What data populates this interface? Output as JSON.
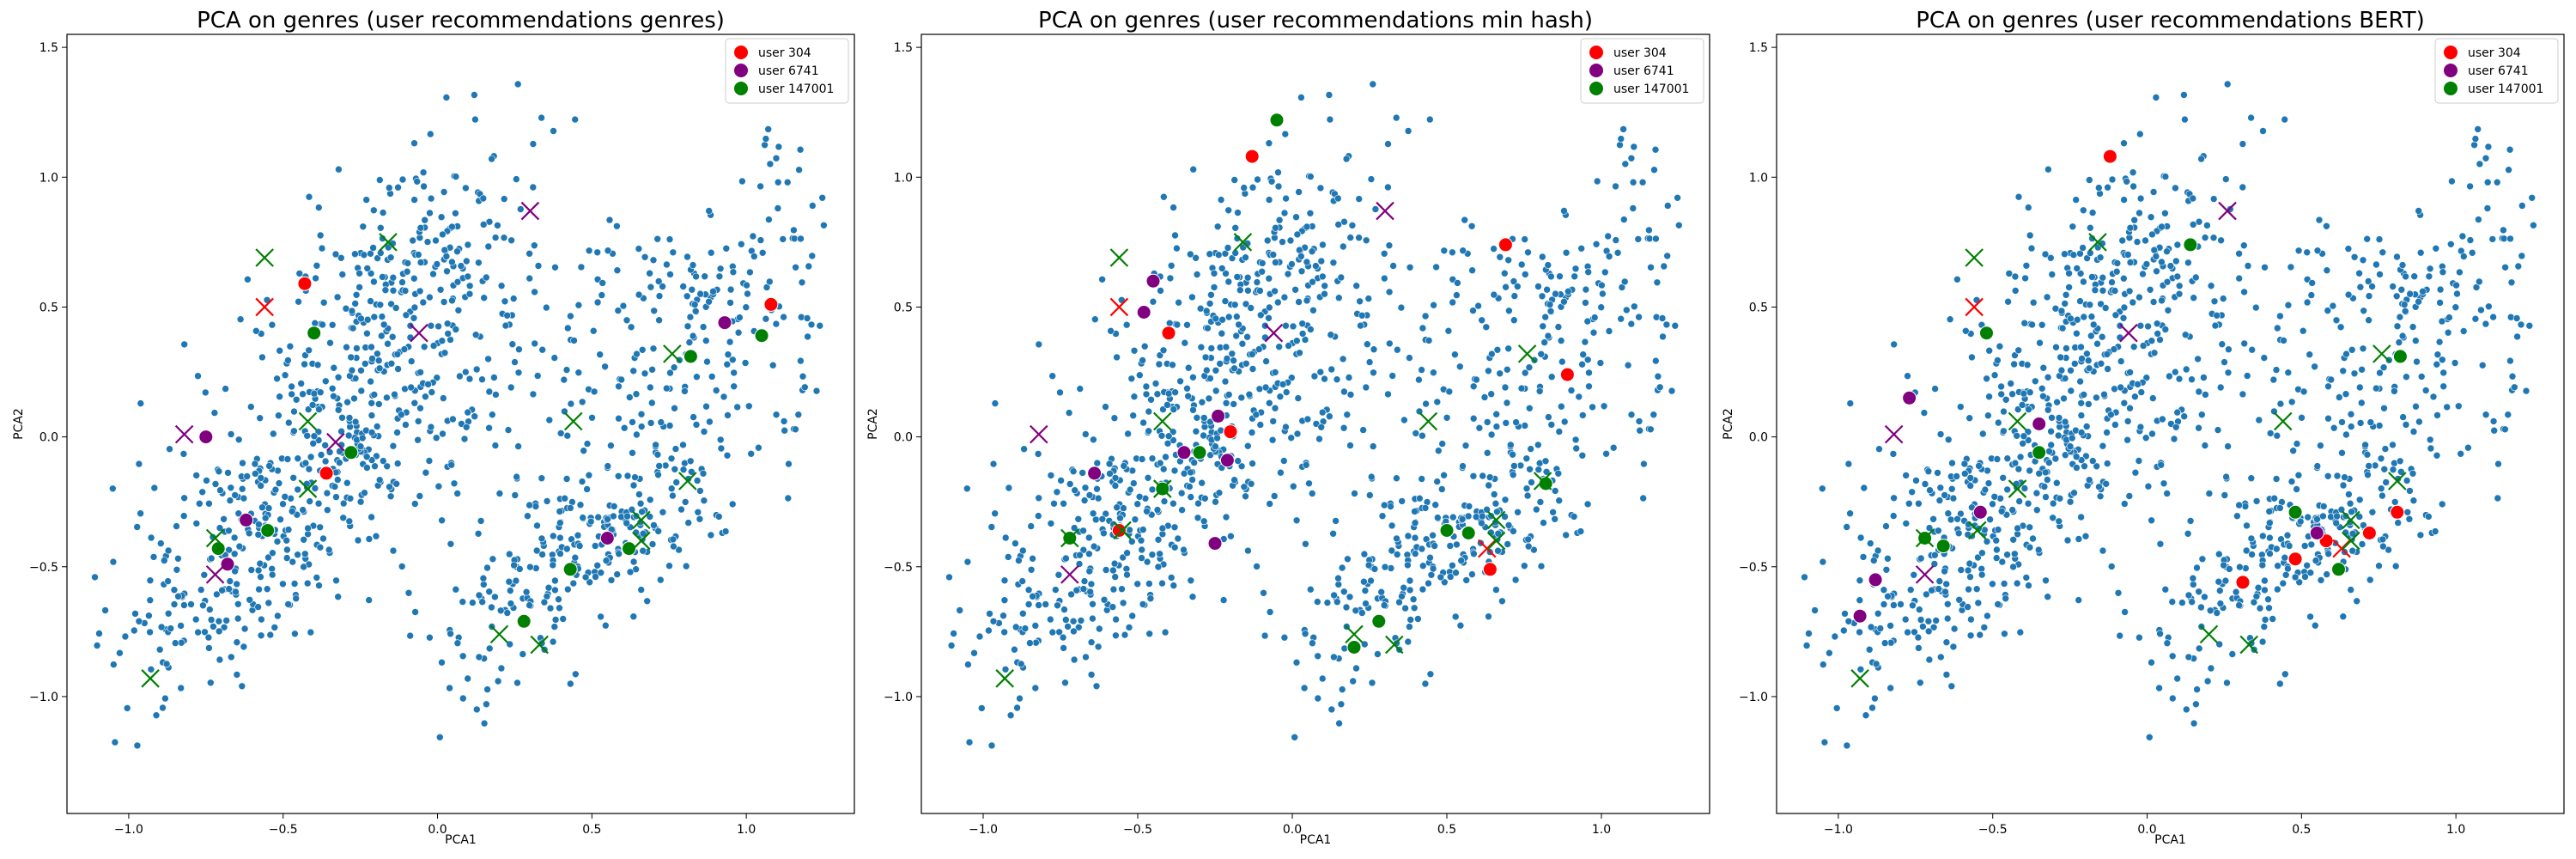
{
  "chart_data": [
    {
      "type": "scatter",
      "title": "PCA on genres (user recommendations genres)",
      "xlabel": "PCA1",
      "ylabel": "PCA2",
      "xlim": [
        -1.2,
        1.35
      ],
      "ylim": [
        -1.45,
        1.55
      ],
      "xticks": [
        -1.0,
        -0.5,
        0.0,
        0.5,
        1.0
      ],
      "xtick_labels": [
        "−1.0",
        "−0.5",
        "0.0",
        "0.5",
        "1.0"
      ],
      "yticks": [
        -1.0,
        -0.5,
        0.0,
        0.5,
        1.0,
        1.5
      ],
      "ytick_labels": [
        "−1.0",
        "−0.5",
        "0.0",
        "0.5",
        "1.0",
        "1.5"
      ],
      "grid": false,
      "legend": "top-right",
      "legend_entries": [
        {
          "label": "user 304",
          "color": "#ff0000"
        },
        {
          "label": "user 6741",
          "color": "#800080"
        },
        {
          "label": "user 147001",
          "color": "#008000"
        }
      ],
      "highlights": {
        "user 304": [
          [
            -0.36,
            -0.14
          ],
          [
            -0.43,
            0.59
          ],
          [
            1.08,
            0.51
          ]
        ],
        "user 6741": [
          [
            -0.75,
            0.0
          ],
          [
            -0.62,
            -0.32
          ],
          [
            -0.68,
            -0.49
          ],
          [
            0.55,
            -0.39
          ],
          [
            0.93,
            0.44
          ]
        ],
        "user 147001": [
          [
            -0.55,
            -0.36
          ],
          [
            -0.71,
            -0.43
          ],
          [
            -0.4,
            0.4
          ],
          [
            -0.28,
            -0.06
          ],
          [
            0.28,
            -0.71
          ],
          [
            0.43,
            -0.51
          ],
          [
            0.62,
            -0.43
          ],
          [
            0.82,
            0.31
          ],
          [
            1.05,
            0.39
          ]
        ]
      },
      "crosses": {
        "user 304": [
          [
            -0.56,
            0.5
          ]
        ],
        "user 6741": [
          [
            -0.82,
            0.01
          ],
          [
            -0.72,
            -0.53
          ],
          [
            -0.33,
            -0.02
          ],
          [
            -0.06,
            0.4
          ],
          [
            0.3,
            0.87
          ]
        ],
        "user 147001": [
          [
            -0.93,
            -0.93
          ],
          [
            -0.72,
            -0.39
          ],
          [
            -0.56,
            0.69
          ],
          [
            -0.42,
            0.06
          ],
          [
            -0.42,
            -0.2
          ],
          [
            -0.16,
            0.75
          ],
          [
            0.2,
            -0.76
          ],
          [
            0.33,
            -0.8
          ],
          [
            0.44,
            0.06
          ],
          [
            0.66,
            -0.32
          ],
          [
            0.66,
            -0.4
          ],
          [
            0.76,
            0.32
          ],
          [
            0.81,
            -0.17
          ]
        ]
      }
    },
    {
      "type": "scatter",
      "title": "PCA on genres (user recommendations min hash)",
      "xlabel": "PCA1",
      "ylabel": "PCA2",
      "xlim": [
        -1.2,
        1.35
      ],
      "ylim": [
        -1.45,
        1.55
      ],
      "xticks": [
        -1.0,
        -0.5,
        0.0,
        0.5,
        1.0
      ],
      "xtick_labels": [
        "−1.0",
        "−0.5",
        "0.0",
        "0.5",
        "1.0"
      ],
      "yticks": [
        -1.0,
        -0.5,
        0.0,
        0.5,
        1.0,
        1.5
      ],
      "ytick_labels": [
        "−1.0",
        "−0.5",
        "0.0",
        "0.5",
        "1.0",
        "1.5"
      ],
      "grid": false,
      "legend": "top-right",
      "legend_entries": [
        {
          "label": "user 304",
          "color": "#ff0000"
        },
        {
          "label": "user 6741",
          "color": "#800080"
        },
        {
          "label": "user 147001",
          "color": "#008000"
        }
      ],
      "highlights": {
        "user 304": [
          [
            -0.56,
            -0.36
          ],
          [
            -0.4,
            0.4
          ],
          [
            -0.2,
            0.02
          ],
          [
            -0.13,
            1.08
          ],
          [
            0.64,
            -0.51
          ],
          [
            0.69,
            0.74
          ],
          [
            0.89,
            0.24
          ]
        ],
        "user 6741": [
          [
            -0.64,
            -0.14
          ],
          [
            -0.48,
            0.48
          ],
          [
            -0.45,
            0.6
          ],
          [
            -0.35,
            -0.06
          ],
          [
            -0.25,
            -0.41
          ],
          [
            -0.21,
            -0.09
          ],
          [
            -0.24,
            0.08
          ]
        ],
        "user 147001": [
          [
            -0.72,
            -0.39
          ],
          [
            -0.42,
            -0.2
          ],
          [
            -0.3,
            -0.06
          ],
          [
            -0.05,
            1.22
          ],
          [
            0.2,
            -0.81
          ],
          [
            0.28,
            -0.71
          ],
          [
            0.5,
            -0.36
          ],
          [
            0.57,
            -0.37
          ],
          [
            0.82,
            -0.18
          ]
        ]
      },
      "crosses": {
        "user 304": [
          [
            -0.56,
            0.5
          ],
          [
            0.63,
            -0.43
          ]
        ],
        "user 6741": [
          [
            -0.82,
            0.01
          ],
          [
            -0.72,
            -0.53
          ],
          [
            -0.06,
            0.4
          ],
          [
            0.3,
            0.87
          ]
        ],
        "user 147001": [
          [
            -0.93,
            -0.93
          ],
          [
            -0.72,
            -0.39
          ],
          [
            -0.56,
            0.69
          ],
          [
            -0.55,
            -0.36
          ],
          [
            -0.42,
            0.06
          ],
          [
            -0.42,
            -0.2
          ],
          [
            -0.16,
            0.75
          ],
          [
            0.2,
            -0.76
          ],
          [
            0.33,
            -0.8
          ],
          [
            0.44,
            0.06
          ],
          [
            0.66,
            -0.32
          ],
          [
            0.66,
            -0.4
          ],
          [
            0.76,
            0.32
          ],
          [
            0.81,
            -0.17
          ]
        ]
      }
    },
    {
      "type": "scatter",
      "title": "PCA on genres (user recommendations BERT)",
      "xlabel": "PCA1",
      "ylabel": "PCA2",
      "xlim": [
        -1.2,
        1.35
      ],
      "ylim": [
        -1.45,
        1.55
      ],
      "xticks": [
        -1.0,
        -0.5,
        0.0,
        0.5,
        1.0
      ],
      "xtick_labels": [
        "−1.0",
        "−0.5",
        "0.0",
        "0.5",
        "1.0"
      ],
      "yticks": [
        -1.0,
        -0.5,
        0.0,
        0.5,
        1.0,
        1.5
      ],
      "ytick_labels": [
        "−1.0",
        "−0.5",
        "0.0",
        "0.5",
        "1.0",
        "1.5"
      ],
      "grid": false,
      "legend": "top-right",
      "legend_entries": [
        {
          "label": "user 304",
          "color": "#ff0000"
        },
        {
          "label": "user 6741",
          "color": "#800080"
        },
        {
          "label": "user 147001",
          "color": "#008000"
        }
      ],
      "highlights": {
        "user 304": [
          [
            -0.12,
            1.08
          ],
          [
            0.31,
            -0.56
          ],
          [
            0.48,
            -0.47
          ],
          [
            0.58,
            -0.4
          ],
          [
            0.72,
            -0.37
          ],
          [
            0.81,
            -0.29
          ]
        ],
        "user 6741": [
          [
            -0.93,
            -0.69
          ],
          [
            -0.77,
            0.15
          ],
          [
            -0.54,
            -0.29
          ],
          [
            -0.35,
            0.05
          ],
          [
            0.55,
            -0.37
          ],
          [
            -0.88,
            -0.55
          ]
        ],
        "user 147001": [
          [
            -0.72,
            -0.39
          ],
          [
            -0.66,
            -0.42
          ],
          [
            -0.52,
            0.4
          ],
          [
            -0.35,
            -0.06
          ],
          [
            0.14,
            0.74
          ],
          [
            0.48,
            -0.29
          ],
          [
            0.62,
            -0.51
          ],
          [
            0.82,
            0.31
          ]
        ]
      },
      "crosses": {
        "user 304": [
          [
            -0.56,
            0.5
          ],
          [
            0.63,
            -0.43
          ]
        ],
        "user 6741": [
          [
            -0.82,
            0.01
          ],
          [
            -0.72,
            -0.53
          ],
          [
            -0.06,
            0.4
          ],
          [
            0.26,
            0.87
          ]
        ],
        "user 147001": [
          [
            -0.93,
            -0.93
          ],
          [
            -0.72,
            -0.39
          ],
          [
            -0.56,
            0.69
          ],
          [
            -0.55,
            -0.36
          ],
          [
            -0.42,
            0.06
          ],
          [
            -0.42,
            -0.2
          ],
          [
            -0.16,
            0.75
          ],
          [
            0.2,
            -0.76
          ],
          [
            0.33,
            -0.8
          ],
          [
            0.44,
            0.06
          ],
          [
            0.66,
            -0.32
          ],
          [
            0.66,
            -0.4
          ],
          [
            0.76,
            0.32
          ],
          [
            0.81,
            -0.17
          ]
        ]
      }
    }
  ]
}
